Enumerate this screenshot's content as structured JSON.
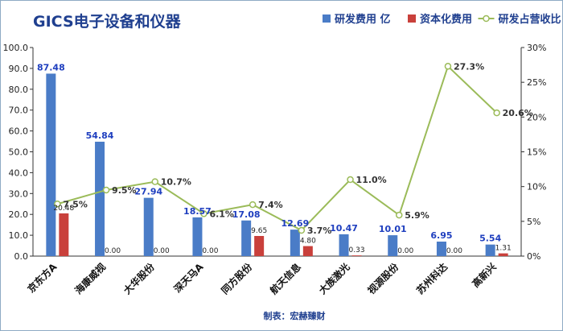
{
  "chart_data": {
    "type": "bar",
    "title": "GICS电子设备和仪器",
    "source_note": "制表：宏赫臻财",
    "categories": [
      "京东方A",
      "海康威视",
      "大华股份",
      "深天马A",
      "同方股份",
      "航天信息",
      "大族激光",
      "视源股份",
      "苏州科达",
      "高新兴"
    ],
    "series": [
      {
        "name": "研发费用 亿",
        "type": "bar",
        "axis": "left",
        "color": "#4a7cc7",
        "values": [
          87.48,
          54.84,
          27.94,
          18.57,
          17.08,
          12.69,
          10.47,
          10.01,
          6.95,
          5.54
        ],
        "labels": [
          "87.48",
          "54.84",
          "27.94",
          "18.57",
          "17.08",
          "12.69",
          "10.47",
          "10.01",
          "6.95",
          "5.54"
        ]
      },
      {
        "name": "资本化费用",
        "type": "bar",
        "axis": "left",
        "color": "#c9403b",
        "values": [
          20.48,
          0.0,
          0.0,
          0.0,
          9.65,
          4.8,
          0.33,
          0.0,
          0.0,
          1.31
        ],
        "labels": [
          "20.48",
          "0.00",
          "0.00",
          "0.00",
          "9.65",
          "4.80",
          "0.33",
          "0.00",
          "0.00",
          "1.31"
        ]
      },
      {
        "name": "研发占营收比",
        "type": "line",
        "axis": "right",
        "color": "#9bbb59",
        "values": [
          7.5,
          9.5,
          10.7,
          6.1,
          7.4,
          3.7,
          11.0,
          5.9,
          27.3,
          20.6
        ],
        "labels": [
          "7.5%",
          "9.5%",
          "10.7%",
          "6.1%",
          "7.4%",
          "3.7%",
          "11.0%",
          "5.9%",
          "27.3%",
          "20.6%"
        ]
      }
    ],
    "y_left": {
      "range": [
        0,
        100
      ],
      "ticks": [
        "0.0",
        "10.0",
        "20.0",
        "30.0",
        "40.0",
        "50.0",
        "60.0",
        "70.0",
        "80.0",
        "90.0",
        "100.0"
      ]
    },
    "y_right": {
      "range": [
        0,
        30
      ],
      "ticks": [
        "0%",
        "5%",
        "10%",
        "15%",
        "20%",
        "25%",
        "30%"
      ]
    },
    "legend": "top-right",
    "grid": false,
    "colors": {
      "title": "#1f3f8f",
      "bar_label": "#1f3fbf",
      "axis": "#333333",
      "frame": "#8eaac4"
    }
  }
}
